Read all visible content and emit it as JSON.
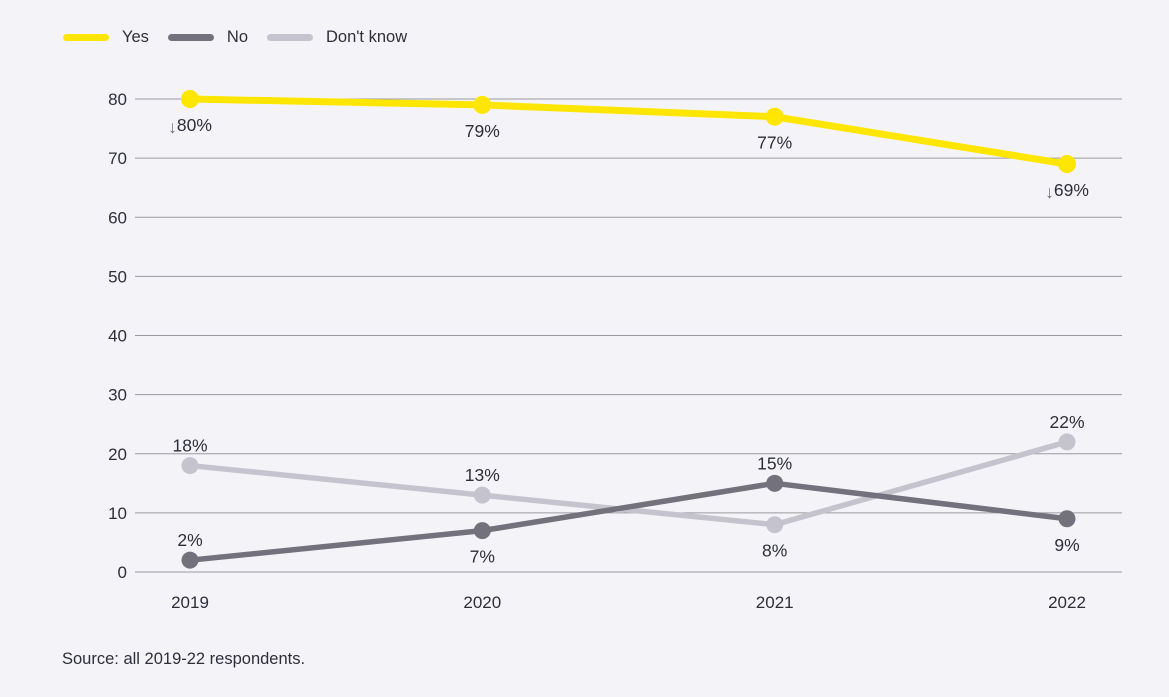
{
  "page": {
    "background": "#f4f4f8",
    "text_color": "#2e2e38"
  },
  "legend": {
    "items": [
      {
        "label": "Yes",
        "color": "#ffe600"
      },
      {
        "label": "No",
        "color": "#73717c"
      },
      {
        "label": "Don't know",
        "color": "#c5c4ce"
      }
    ]
  },
  "source": {
    "text": "Source: all 2019-22 respondents."
  },
  "chart_data": {
    "type": "line",
    "x": [
      "2019",
      "2020",
      "2021",
      "2022"
    ],
    "series": [
      {
        "name": "Yes",
        "color": "#ffe600",
        "values": [
          80,
          79,
          77,
          69
        ],
        "labels": [
          {
            "text": "80%",
            "position": "below",
            "arrow": "down"
          },
          {
            "text": "79%",
            "position": "below"
          },
          {
            "text": "77%",
            "position": "below"
          },
          {
            "text": "69%",
            "position": "below",
            "arrow": "down"
          }
        ]
      },
      {
        "name": "No",
        "color": "#73717c",
        "values": [
          2,
          7,
          15,
          9
        ],
        "labels": [
          {
            "text": "2%",
            "position": "above"
          },
          {
            "text": "7%",
            "position": "below"
          },
          {
            "text": "15%",
            "position": "above"
          },
          {
            "text": "9%",
            "position": "below"
          }
        ]
      },
      {
        "name": "Don't know",
        "color": "#c5c4ce",
        "values": [
          18,
          13,
          8,
          22
        ],
        "labels": [
          {
            "text": "18%",
            "position": "above"
          },
          {
            "text": "13%",
            "position": "above"
          },
          {
            "text": "8%",
            "position": "below"
          },
          {
            "text": "22%",
            "position": "above"
          }
        ]
      }
    ],
    "ylim": [
      0,
      80
    ],
    "yticks": [
      0,
      10,
      20,
      30,
      40,
      50,
      60,
      70,
      80
    ],
    "grid": true,
    "gridline_color": "#9a99a1",
    "axis_label_color": "#2e2e38",
    "data_label_color": "#2e2e38",
    "annotation_arrow": "↓",
    "annotation_arrow_color": "#73717c",
    "legend_position": "top-left",
    "xlabel": "",
    "ylabel": "",
    "title": ""
  }
}
